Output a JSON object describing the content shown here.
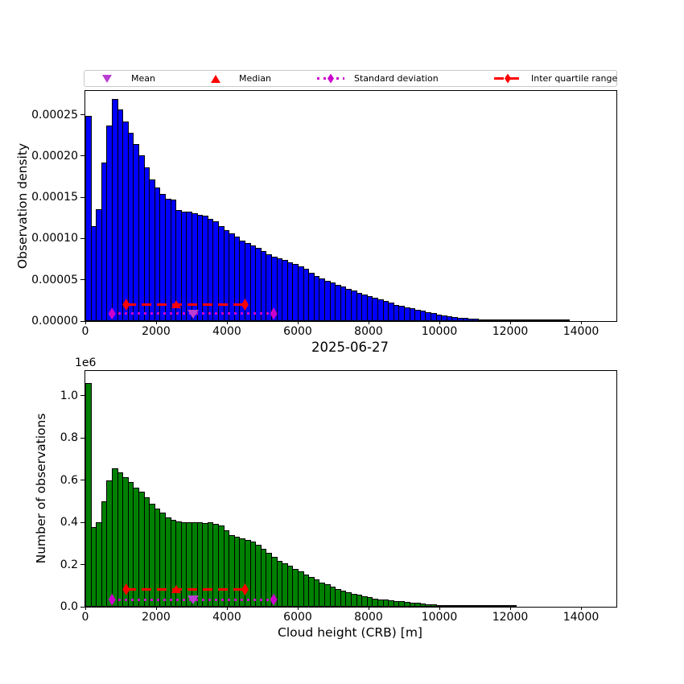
{
  "figure": {
    "background": "#ffffff",
    "legend": {
      "entries": [
        {
          "label": "Mean",
          "marker": "triangle-down",
          "color": "#b93ed1",
          "line": "none"
        },
        {
          "label": "Median",
          "marker": "triangle-up",
          "color": "#ff0000",
          "line": "none"
        },
        {
          "label": "Standard deviation",
          "marker": "thin-diamond",
          "color": "#cc00cc",
          "line": "dotted"
        },
        {
          "label": "Inter quartile range",
          "marker": "thin-diamond",
          "color": "#ff0000",
          "line": "dashed"
        }
      ]
    }
  },
  "chart_data": [
    {
      "type": "bar",
      "subtype": "histogram",
      "title": "",
      "xlabel": "",
      "ylabel": "Observation density",
      "bar_color": "#0000ff",
      "bar_edge_color": "#000000",
      "bin_width_m": 150,
      "xlim": [
        0,
        15000
      ],
      "value_unit": "1e-5",
      "ylim_scaled": [
        0,
        27.9
      ],
      "xtick_values": [
        0,
        2000,
        4000,
        6000,
        8000,
        10000,
        12000,
        14000
      ],
      "xtick_labels": [
        "0",
        "2000",
        "4000",
        "6000",
        "8000",
        "10000",
        "12000",
        "14000"
      ],
      "ytick_values": [
        0,
        5,
        10,
        15,
        20,
        25
      ],
      "ytick_labels": [
        "0.00000",
        "0.00005",
        "0.00010",
        "0.00015",
        "0.00020",
        "0.00025"
      ],
      "values": [
        24.9,
        11.5,
        13.6,
        19.2,
        23.7,
        26.9,
        25.7,
        24.2,
        22.8,
        21.5,
        20.1,
        18.6,
        17.2,
        16.2,
        15.4,
        14.8,
        14.7,
        13.5,
        13.3,
        13.3,
        13.1,
        12.9,
        12.8,
        12.4,
        12.1,
        11.5,
        11.0,
        10.6,
        10.2,
        9.8,
        9.5,
        9.2,
        8.9,
        8.5,
        8.1,
        7.8,
        7.6,
        7.4,
        7.1,
        6.9,
        6.6,
        6.3,
        5.9,
        5.5,
        5.2,
        4.9,
        4.7,
        4.4,
        4.2,
        3.9,
        3.7,
        3.4,
        3.2,
        3.0,
        2.8,
        2.6,
        2.4,
        2.2,
        2.0,
        1.85,
        1.7,
        1.55,
        1.4,
        1.25,
        1.1,
        0.95,
        0.82,
        0.7,
        0.6,
        0.52,
        0.44,
        0.37,
        0.3,
        0.25,
        0.2,
        0.16,
        0.13,
        0.1,
        0.08,
        0.06,
        0.05,
        0.04,
        0.03,
        0.02,
        0.015,
        0.01,
        0.007,
        0.005,
        0.003,
        0.002,
        0.001,
        0,
        0,
        0,
        0,
        0,
        0,
        0,
        0,
        0
      ],
      "stats": {
        "mean": 3050,
        "median": 2590,
        "std_span": [
          755,
          5320
        ],
        "iqr": [
          1155,
          4510
        ]
      },
      "marker_lines": {
        "iqr_y_scaled": 2.0,
        "std_y_scaled": 0.9
      }
    },
    {
      "type": "bar",
      "subtype": "histogram",
      "title": "2025-06-27",
      "xlabel": "Cloud height (CRB) [m]",
      "ylabel": "Number of observations",
      "offset_text": "1e6",
      "bar_color": "#008000",
      "bar_edge_color": "#000000",
      "bin_width_m": 150,
      "xlim": [
        0,
        15000
      ],
      "value_unit": "1e6",
      "ylim_scaled": [
        0,
        1.118
      ],
      "xtick_values": [
        0,
        2000,
        4000,
        6000,
        8000,
        10000,
        12000,
        14000
      ],
      "xtick_labels": [
        "0",
        "2000",
        "4000",
        "6000",
        "8000",
        "10000",
        "12000",
        "14000"
      ],
      "ytick_values": [
        0,
        0.2,
        0.4,
        0.6,
        0.8,
        1.0
      ],
      "ytick_labels": [
        "0.0",
        "0.2",
        "0.4",
        "0.6",
        "0.8",
        "1.0"
      ],
      "values": [
        1.06,
        0.376,
        0.4,
        0.5,
        0.6,
        0.655,
        0.638,
        0.615,
        0.59,
        0.565,
        0.545,
        0.52,
        0.49,
        0.465,
        0.445,
        0.425,
        0.412,
        0.405,
        0.401,
        0.4,
        0.4,
        0.399,
        0.396,
        0.399,
        0.393,
        0.387,
        0.363,
        0.341,
        0.332,
        0.326,
        0.318,
        0.308,
        0.294,
        0.276,
        0.257,
        0.236,
        0.219,
        0.206,
        0.196,
        0.181,
        0.167,
        0.153,
        0.141,
        0.128,
        0.116,
        0.106,
        0.094,
        0.084,
        0.075,
        0.068,
        0.062,
        0.056,
        0.05,
        0.045,
        0.04,
        0.036,
        0.033,
        0.03,
        0.028,
        0.025,
        0.023,
        0.02,
        0.018,
        0.015,
        0.013,
        0.011,
        0.009,
        0.008,
        0.006,
        0.005,
        0.004,
        0.0035,
        0.003,
        0.0025,
        0.002,
        0.0015,
        0.001,
        0.0008,
        0.0005,
        0.0003,
        0.0002,
        0,
        0,
        0,
        0,
        0,
        0,
        0,
        0,
        0,
        0,
        0,
        0,
        0,
        0,
        0,
        0,
        0,
        0,
        0
      ],
      "stats": {
        "mean": 3050,
        "median": 2590,
        "std_span": [
          755,
          5320
        ],
        "iqr": [
          1155,
          4510
        ]
      },
      "marker_lines": {
        "iqr_y_scaled": 0.082,
        "std_y_scaled": 0.034
      }
    }
  ],
  "colors": {
    "median_iqr": "#ff0000",
    "mean": "#b93ed1",
    "std": "#cc00cc",
    "top_bars": "#0000ff",
    "bottom_bars": "#008000"
  }
}
